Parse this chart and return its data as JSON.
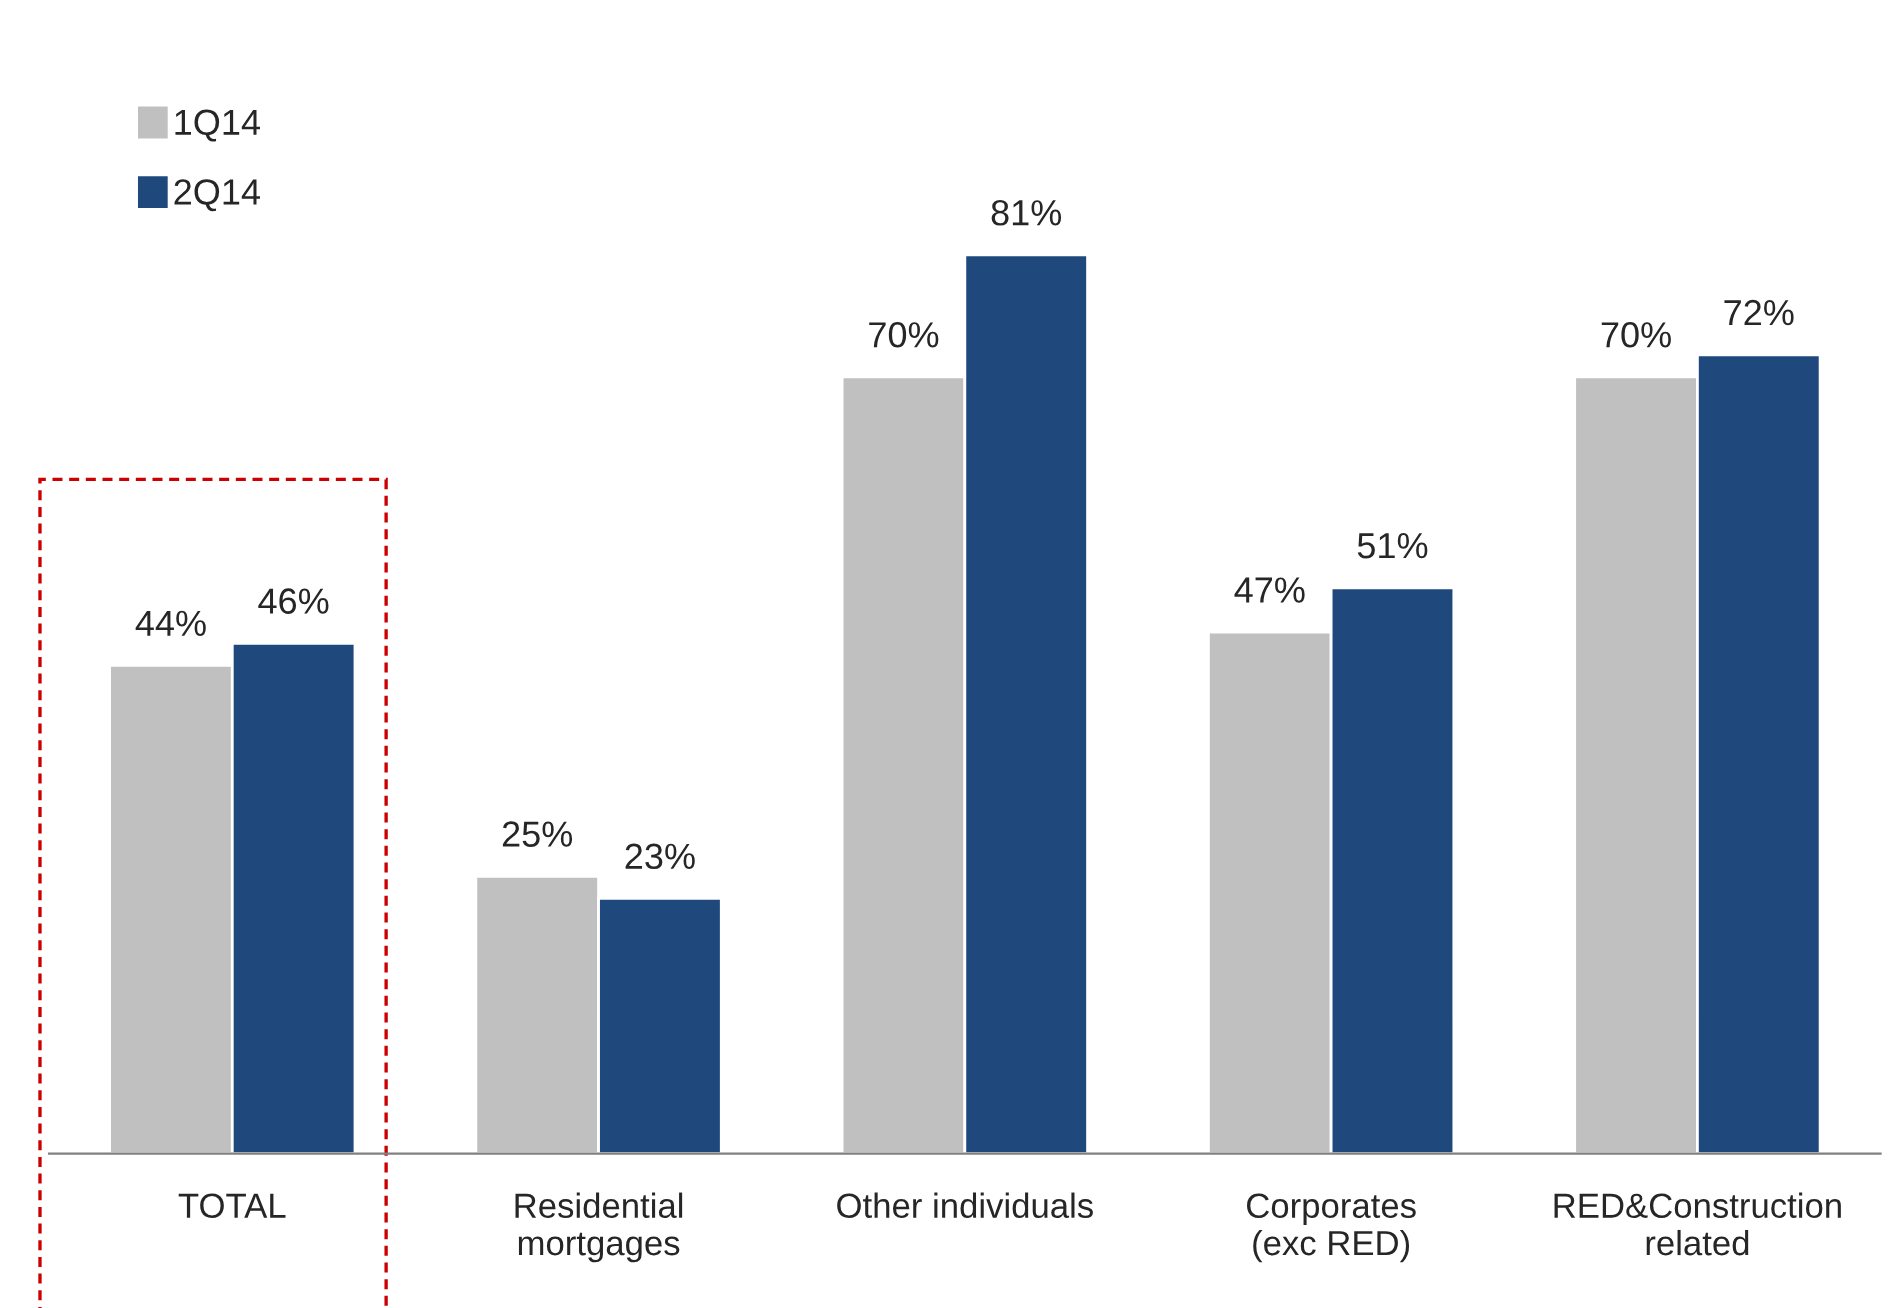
{
  "chart_data": {
    "type": "bar",
    "categories": [
      "TOTAL",
      "Residential\nmortgages",
      "Other individuals",
      "Corporates\n(exc RED)",
      "RED&Construction\nrelated"
    ],
    "series": [
      {
        "name": "1Q14",
        "color": "#c0c0c0",
        "values": [
          44,
          25,
          70,
          47,
          70
        ],
        "value_labels": [
          "44%",
          "25%",
          "70%",
          "47%",
          "70%"
        ]
      },
      {
        "name": "2Q14",
        "color": "#1f497d",
        "values": [
          46,
          23,
          81,
          51,
          72
        ],
        "value_labels": [
          "46%",
          "23%",
          "81%",
          "51%",
          "72%"
        ]
      }
    ],
    "legend": "top left",
    "grid": false
  }
}
